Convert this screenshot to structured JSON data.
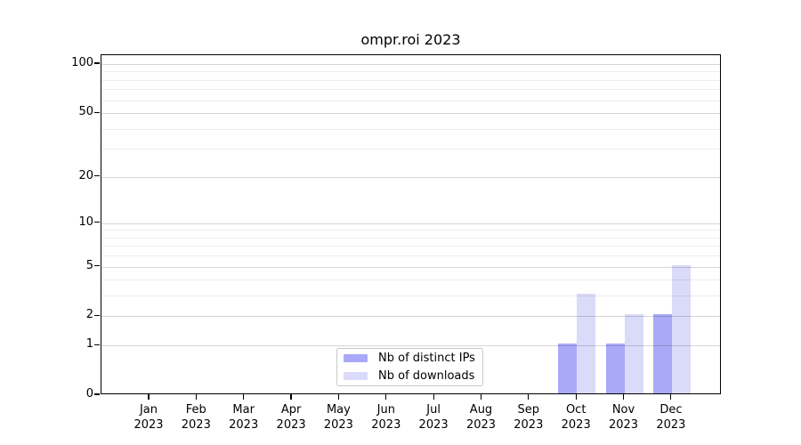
{
  "chart_data": {
    "type": "bar",
    "title": "ompr.roi 2023",
    "categories": [
      "Jan",
      "Feb",
      "Mar",
      "Apr",
      "May",
      "Jun",
      "Jul",
      "Aug",
      "Sep",
      "Oct",
      "Nov",
      "Dec"
    ],
    "year_label": "2023",
    "series": [
      {
        "name": "Nb of distinct IPs",
        "color": "#a9a9f7",
        "values": [
          0,
          0,
          0,
          0,
          0,
          0,
          0,
          0,
          0,
          1,
          1,
          2
        ]
      },
      {
        "name": "Nb of downloads",
        "color": "#dadaf9",
        "values": [
          0,
          0,
          0,
          0,
          0,
          0,
          0,
          0,
          0,
          3,
          2,
          5
        ]
      }
    ],
    "yscale": "log1p",
    "yticks": [
      0,
      1,
      2,
      5,
      10,
      20,
      50,
      100
    ],
    "minor_gridlines": [
      3,
      4,
      6,
      7,
      8,
      9,
      30,
      40,
      60,
      70,
      80,
      90
    ],
    "ylim": [
      0,
      113
    ],
    "grid": "horizontal",
    "legend_position": "lower center"
  }
}
